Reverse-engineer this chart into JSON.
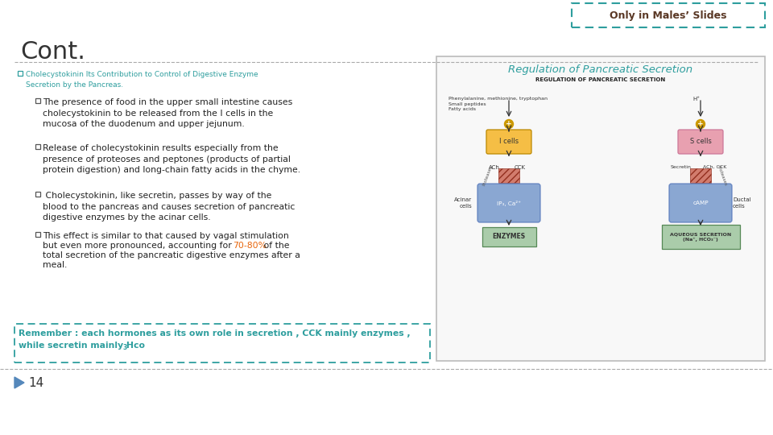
{
  "title": "Cont.",
  "title_color": "#333333",
  "bg_color": "#ffffff",
  "teal_color": "#2E9E9E",
  "orange_highlight": "#E8650A",
  "top_badge_text": "Only in Males’ Slides",
  "bullet1_text": "Cholecystokinin Its Contribution to Control of Digestive Enzyme\nSecretion by the Pancreas.",
  "bullet1_color": "#2E9E9E",
  "bullet2_text": "The presence of food in the upper small intestine causes\ncholecystokinin to be released from the I cells in the\nmucosa of the duodenum and upper jejunum.",
  "bullet3_text": "Release of cholecystokinin results especially from the\npresence of proteoses and peptones (products of partial\nprotein digestion) and long-chain fatty acids in the chyme.",
  "bullet4_text": " Cholecystokinin, like secretin, passes by way of the\nblood to the pancreas and causes secretion of pancreatic\ndigestive enzymes by the acinar cells.",
  "bullet5a_text": "This effect is similar to that caused by vagal stimulation\nbut even more pronounced, accounting for ",
  "bullet5b_highlight": "70-80%",
  "bullet5c_text": " of the\ntotal secretion of the pancreatic digestive enzymes after a\nmeal.",
  "remember_line1": "Remember : each hormones as its own role in secretion , CCK mainly enzymes ,",
  "remember_line2": "while secretin mainly Hco",
  "remember_subscript": "3",
  "page_number": "14",
  "image_title": "Regulation of Pancreatic Secretion"
}
